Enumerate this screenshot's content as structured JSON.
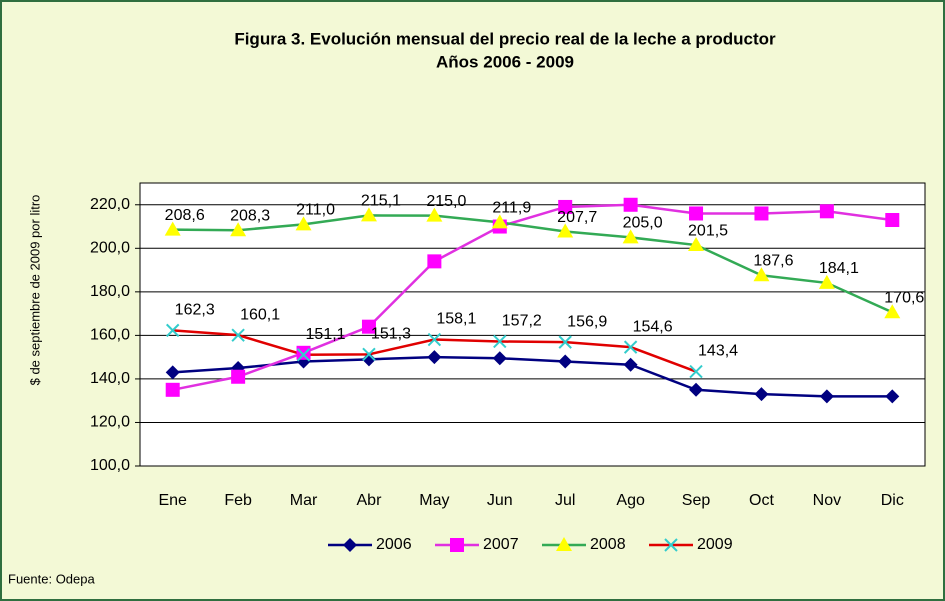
{
  "chart_data": {
    "type": "line",
    "title": "Figura 3. Evolución mensual del precio real de la leche a productor",
    "subtitle": "Años 2006 - 2009",
    "y_label": "$ de septiembre de 2009 por litro",
    "source": "Fuente: Odepa",
    "categories": [
      "Ene",
      "Feb",
      "Mar",
      "Abr",
      "May",
      "Jun",
      "Jul",
      "Ago",
      "Sep",
      "Oct",
      "Nov",
      "Dic"
    ],
    "series": [
      {
        "name": "2006",
        "color": "#000080",
        "marker": "diamond",
        "marker_color": "#000080",
        "values": [
          143,
          145,
          148,
          149,
          150,
          149.5,
          148,
          146.5,
          135,
          133,
          132,
          132
        ]
      },
      {
        "name": "2007",
        "color": "#e030e0",
        "marker": "square",
        "marker_color": "#ff00ff",
        "values": [
          135,
          141,
          152,
          164,
          194,
          210,
          219,
          220,
          216,
          216,
          217,
          213
        ]
      },
      {
        "name": "2008",
        "color": "#33aa55",
        "marker": "triangle",
        "marker_color": "#ffff00",
        "values": [
          208.6,
          208.3,
          211.0,
          215.1,
          215.0,
          211.9,
          207.7,
          205.0,
          201.5,
          187.6,
          184.1,
          170.6
        ],
        "value_labels": [
          "208,6",
          "208,3",
          "211,0",
          "215,1",
          "215,0",
          "211,9",
          "207,7",
          "205,0",
          "201,5",
          "187,6",
          "184,1",
          "170,6"
        ]
      },
      {
        "name": "2009",
        "color": "#e00000",
        "marker": "x",
        "marker_color": "#33cccc",
        "values": [
          162.3,
          160.1,
          151.1,
          151.3,
          158.1,
          157.2,
          156.9,
          154.6,
          143.4,
          null,
          null,
          null
        ],
        "value_labels": [
          "162,3",
          "160,1",
          "151,1",
          "151,3",
          "158,1",
          "157,2",
          "156,9",
          "154,6",
          "143,4",
          null,
          null,
          null
        ]
      }
    ],
    "ylim": [
      100,
      230
    ],
    "yticks": [
      {
        "value": 100,
        "label": "100,0"
      },
      {
        "value": 120,
        "label": "120,0"
      },
      {
        "value": 140,
        "label": "140,0"
      },
      {
        "value": 160,
        "label": "160,0"
      },
      {
        "value": 180,
        "label": "180,0"
      },
      {
        "value": 200,
        "label": "200,0"
      },
      {
        "value": 220,
        "label": "220,0"
      }
    ],
    "grid": true,
    "legend": "bottom"
  }
}
